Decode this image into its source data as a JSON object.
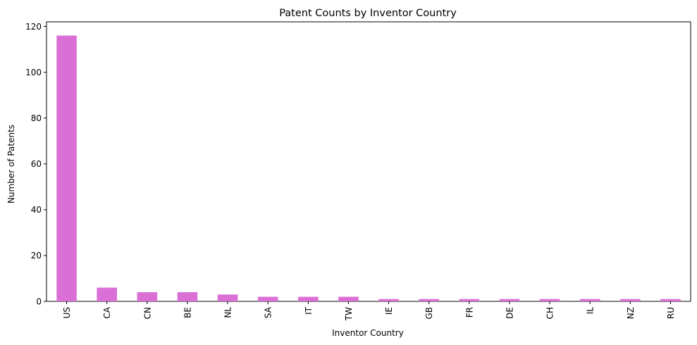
{
  "chart_data": {
    "type": "bar",
    "title": "Patent Counts by Inventor Country",
    "xlabel": "Inventor Country",
    "ylabel": "Number of Patents",
    "categories": [
      "US",
      "CA",
      "CN",
      "BE",
      "NL",
      "SA",
      "IT",
      "TW",
      "IE",
      "GB",
      "FR",
      "DE",
      "CH",
      "IL",
      "NZ",
      "RU"
    ],
    "values": [
      116,
      6,
      4,
      4,
      3,
      2,
      2,
      2,
      1,
      1,
      1,
      1,
      1,
      1,
      1,
      1
    ],
    "ylim": [
      0,
      122
    ],
    "yticks": [
      0,
      20,
      40,
      60,
      80,
      100,
      120
    ],
    "bar_color": "#da70d6",
    "grid": false,
    "legend": "none"
  }
}
